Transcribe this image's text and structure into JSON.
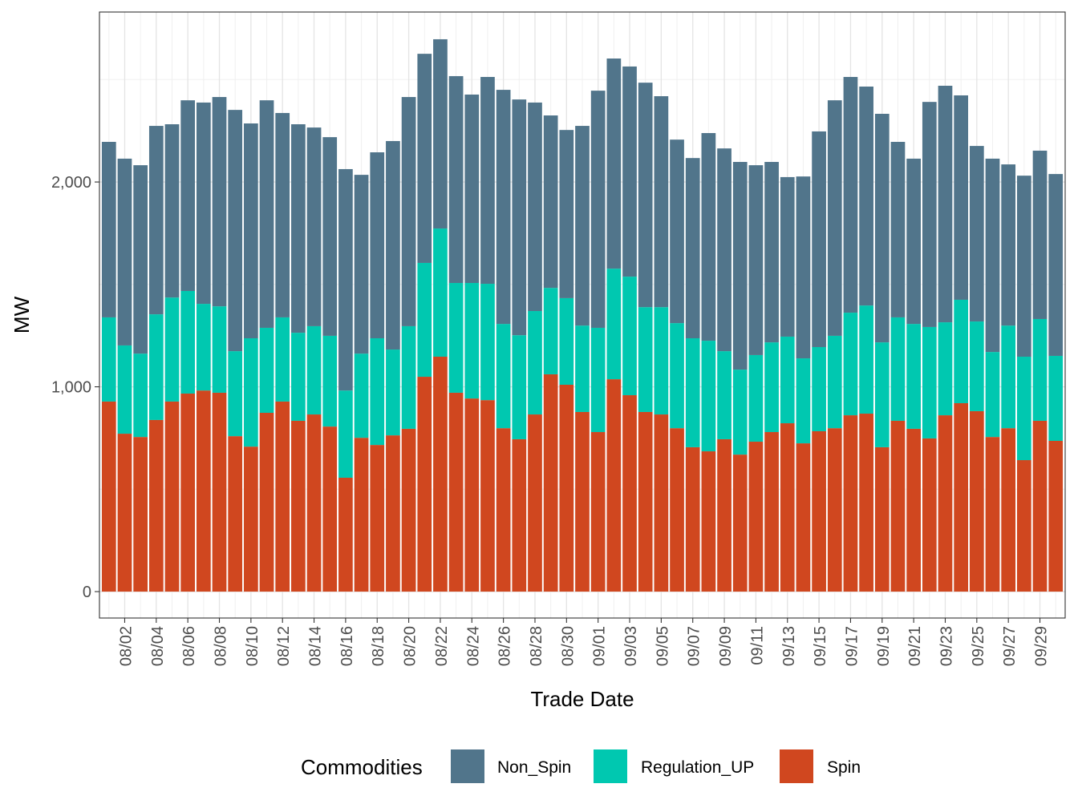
{
  "chart_data": {
    "type": "bar",
    "stacked": true,
    "title": "",
    "xlabel": "Trade Date",
    "ylabel": "MW",
    "ylim": [
      -129,
      2830
    ],
    "yticks": [
      0,
      1000,
      2000
    ],
    "ytick_labels": [
      "0",
      "1,000",
      "2,000"
    ],
    "grid": true,
    "legend": {
      "title": "Commodities",
      "placement": "bottom"
    },
    "categories": [
      "08/01",
      "08/02",
      "08/03",
      "08/04",
      "08/05",
      "08/06",
      "08/07",
      "08/08",
      "08/09",
      "08/10",
      "08/11",
      "08/12",
      "08/13",
      "08/14",
      "08/15",
      "08/16",
      "08/17",
      "08/18",
      "08/19",
      "08/20",
      "08/21",
      "08/22",
      "08/23",
      "08/24",
      "08/25",
      "08/26",
      "08/27",
      "08/28",
      "08/29",
      "08/30",
      "08/31",
      "09/01",
      "09/02",
      "09/03",
      "09/04",
      "09/05",
      "09/06",
      "09/07",
      "09/08",
      "09/09",
      "09/10",
      "09/11",
      "09/12",
      "09/13",
      "09/14",
      "09/15",
      "09/16",
      "09/17",
      "09/18",
      "09/19",
      "09/20",
      "09/21",
      "09/22",
      "09/23",
      "09/24",
      "09/25",
      "09/26",
      "09/27",
      "09/28",
      "09/29",
      "09/30"
    ],
    "xtick_labels": [
      "08/02",
      "08/04",
      "08/06",
      "08/08",
      "08/10",
      "08/12",
      "08/14",
      "08/16",
      "08/18",
      "08/20",
      "08/22",
      "08/24",
      "08/26",
      "08/28",
      "08/30",
      "09/01",
      "09/03",
      "09/05",
      "09/07",
      "09/09",
      "09/11",
      "09/13",
      "09/15",
      "09/17",
      "09/19",
      "09/21",
      "09/23",
      "09/25",
      "09/27",
      "09/29"
    ],
    "series": [
      {
        "name": "Spin",
        "color": "#D0471F",
        "values": [
          928,
          771,
          755,
          838,
          928,
          967,
          982,
          971,
          759,
          708,
          873,
          928,
          834,
          865,
          806,
          556,
          751,
          716,
          763,
          795,
          1049,
          1147,
          971,
          943,
          935,
          798,
          744,
          865,
          1061,
          1010,
          877,
          779,
          1037,
          959,
          877,
          865,
          798,
          705,
          685,
          744,
          669,
          732,
          779,
          822,
          724,
          783,
          798,
          861,
          869,
          705,
          834,
          795,
          748,
          861,
          920,
          881,
          755,
          798,
          642,
          834,
          736
        ]
      },
      {
        "name": "Regulation_UP",
        "color": "#00C8B0",
        "values": [
          411,
          431,
          407,
          516,
          508,
          501,
          423,
          422,
          415,
          529,
          415,
          411,
          430,
          431,
          443,
          426,
          411,
          521,
          419,
          501,
          556,
          626,
          536,
          564,
          568,
          509,
          508,
          505,
          422,
          423,
          422,
          509,
          540,
          579,
          512,
          524,
          513,
          532,
          540,
          430,
          415,
          423,
          438,
          423,
          415,
          411,
          451,
          501,
          528,
          512,
          505,
          512,
          544,
          454,
          505,
          438,
          415,
          501,
          505,
          497,
          415
        ]
      },
      {
        "name": "Non_Spin",
        "color": "#51758B",
        "values": [
          857,
          912,
          920,
          920,
          846,
          931,
          983,
          1022,
          1178,
          1049,
          1111,
          998,
          1018,
          970,
          970,
          1081,
          873,
          908,
          1018,
          1119,
          1021,
          924,
          1010,
          920,
          1010,
          1143,
          1151,
          1018,
          842,
          821,
          975,
          1158,
          1026,
          1026,
          1096,
          1030,
          896,
          880,
          1014,
          990,
          1014,
          927,
          881,
          779,
          888,
          1053,
          1150,
          1151,
          1069,
          1116,
          857,
          807,
          1099,
          1155,
          998,
          857,
          944,
          787,
          884,
          822,
          888
        ]
      }
    ],
    "legend_order": [
      "Non_Spin",
      "Regulation_UP",
      "Spin"
    ]
  }
}
